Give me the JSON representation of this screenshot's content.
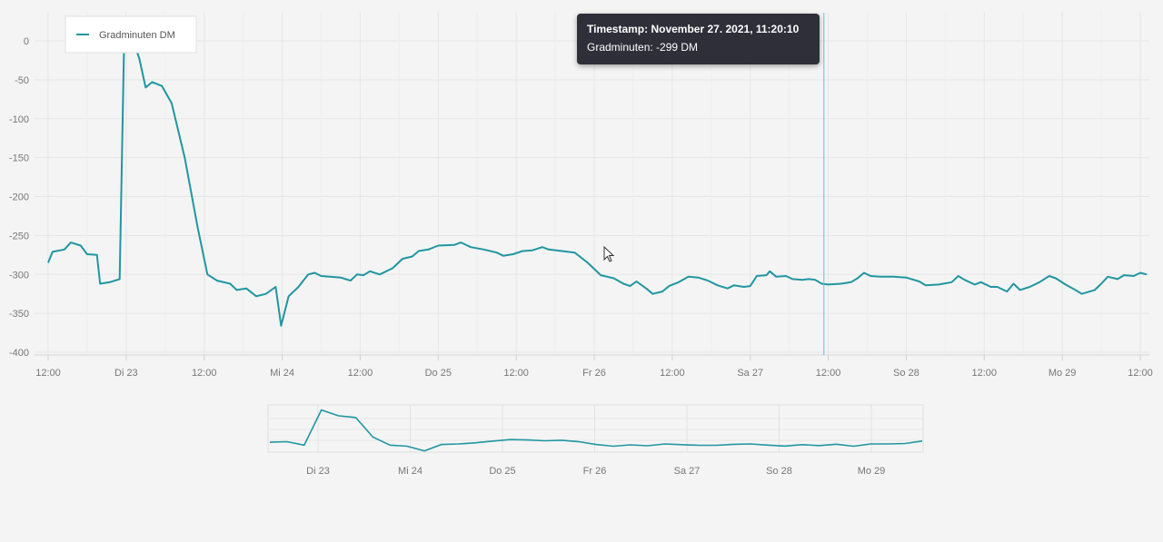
{
  "colors": {
    "series": "#2196a0",
    "crosshair": "#5cc3d2",
    "grid": "#e6e6e6",
    "background": "#f4f4f4",
    "tooltip_bg": "#2f2f3a"
  },
  "legend": {
    "label": "Gradminuten DM",
    "position": "top-left"
  },
  "tooltip": {
    "title": "Timestamp: November 27. 2021, 11:20:10",
    "value_line": "Gradminuten: -299 DM"
  },
  "cursor_icon": "mouse-pointer-icon",
  "chart_data": [
    {
      "type": "line",
      "title": "",
      "xlabel": "",
      "ylabel": "",
      "grid": true,
      "ylim": [
        -400,
        0
      ],
      "xlim": [
        "2021-11-22 12:00",
        "2021-11-29 12:00"
      ],
      "y_ticks": [
        "0",
        "-50",
        "-100",
        "-150",
        "-200",
        "-250",
        "-300",
        "-350",
        "-400"
      ],
      "x_ticks": [
        "12:00",
        "Di 23",
        "12:00",
        "Mi 24",
        "12:00",
        "Do 25",
        "12:00",
        "Fr 26",
        "12:00",
        "Sa 27",
        "12:00",
        "So 28",
        "12:00",
        "Mo 29",
        "12:00"
      ],
      "crosshair_x": "2021-11-27 11:20",
      "series": [
        {
          "name": "Gradminuten DM",
          "points": [
            [
              "2021-11-22 12:00",
              -285
            ],
            [
              "2021-11-22 12:40",
              -271
            ],
            [
              "2021-11-22 14:30",
              -268
            ],
            [
              "2021-11-22 15:30",
              -259
            ],
            [
              "2021-11-22 17:00",
              -263
            ],
            [
              "2021-11-22 18:00",
              -274
            ],
            [
              "2021-11-22 19:30",
              -275
            ],
            [
              "2021-11-22 20:00",
              -312
            ],
            [
              "2021-11-22 21:30",
              -310
            ],
            [
              "2021-11-22 23:00",
              -306
            ],
            [
              "2021-11-22 23:40",
              -8
            ],
            [
              "2021-11-23 00:30",
              -10
            ],
            [
              "2021-11-23 01:10",
              -3
            ],
            [
              "2021-11-23 02:00",
              -22
            ],
            [
              "2021-11-23 03:00",
              -60
            ],
            [
              "2021-11-23 04:00",
              -53
            ],
            [
              "2021-11-23 05:30",
              -58
            ],
            [
              "2021-11-23 07:00",
              -80
            ],
            [
              "2021-11-23 09:00",
              -150
            ],
            [
              "2021-11-23 11:00",
              -240
            ],
            [
              "2021-11-23 12:30",
              -300
            ],
            [
              "2021-11-23 14:00",
              -308
            ],
            [
              "2021-11-23 16:00",
              -312
            ],
            [
              "2021-11-23 17:00",
              -320
            ],
            [
              "2021-11-23 18:30",
              -318
            ],
            [
              "2021-11-23 20:00",
              -328
            ],
            [
              "2021-11-23 21:30",
              -325
            ],
            [
              "2021-11-23 23:00",
              -316
            ],
            [
              "2021-11-23 23:50",
              -366
            ],
            [
              "2021-11-24 01:00",
              -328
            ],
            [
              "2021-11-24 02:30",
              -316
            ],
            [
              "2021-11-24 04:00",
              -300
            ],
            [
              "2021-11-24 05:00",
              -298
            ],
            [
              "2021-11-24 06:00",
              -302
            ],
            [
              "2021-11-24 09:00",
              -304
            ],
            [
              "2021-11-24 10:30",
              -308
            ],
            [
              "2021-11-24 11:30",
              -300
            ],
            [
              "2021-11-24 12:30",
              -301
            ],
            [
              "2021-11-24 13:30",
              -296
            ],
            [
              "2021-11-24 15:00",
              -300
            ],
            [
              "2021-11-24 17:00",
              -292
            ],
            [
              "2021-11-24 18:30",
              -280
            ],
            [
              "2021-11-24 20:00",
              -277
            ],
            [
              "2021-11-24 21:00",
              -270
            ],
            [
              "2021-11-24 22:30",
              -268
            ],
            [
              "2021-11-25 00:00",
              -263
            ],
            [
              "2021-11-25 02:30",
              -262
            ],
            [
              "2021-11-25 03:30",
              -259
            ],
            [
              "2021-11-25 05:00",
              -265
            ],
            [
              "2021-11-25 07:00",
              -268
            ],
            [
              "2021-11-25 09:00",
              -272
            ],
            [
              "2021-11-25 10:00",
              -276
            ],
            [
              "2021-11-25 11:30",
              -274
            ],
            [
              "2021-11-25 13:00",
              -270
            ],
            [
              "2021-11-25 14:30",
              -269
            ],
            [
              "2021-11-25 16:00",
              -265
            ],
            [
              "2021-11-25 17:00",
              -268
            ],
            [
              "2021-11-25 19:00",
              -270
            ],
            [
              "2021-11-25 21:00",
              -272
            ],
            [
              "2021-11-25 23:00",
              -285
            ],
            [
              "2021-11-26 01:00",
              -301
            ],
            [
              "2021-11-26 03:00",
              -305
            ],
            [
              "2021-11-26 04:30",
              -312
            ],
            [
              "2021-11-26 05:30",
              -315
            ],
            [
              "2021-11-26 06:30",
              -309
            ],
            [
              "2021-11-26 08:00",
              -318
            ],
            [
              "2021-11-26 09:00",
              -325
            ],
            [
              "2021-11-26 10:30",
              -322
            ],
            [
              "2021-11-26 11:30",
              -315
            ],
            [
              "2021-11-26 13:00",
              -310
            ],
            [
              "2021-11-26 14:30",
              -303
            ],
            [
              "2021-11-26 16:00",
              -304
            ],
            [
              "2021-11-26 17:30",
              -308
            ],
            [
              "2021-11-26 19:00",
              -314
            ],
            [
              "2021-11-26 20:30",
              -318
            ],
            [
              "2021-11-26 21:30",
              -314
            ],
            [
              "2021-11-26 23:00",
              -316
            ],
            [
              "2021-11-27 00:00",
              -315
            ],
            [
              "2021-11-27 01:00",
              -302
            ],
            [
              "2021-11-27 02:30",
              -301
            ],
            [
              "2021-11-27 03:00",
              -296
            ],
            [
              "2021-11-27 04:00",
              -303
            ],
            [
              "2021-11-27 05:30",
              -302
            ],
            [
              "2021-11-27 06:30",
              -306
            ],
            [
              "2021-11-27 08:00",
              -307
            ],
            [
              "2021-11-27 09:00",
              -306
            ],
            [
              "2021-11-27 10:00",
              -307
            ],
            [
              "2021-11-27 11:00",
              -312
            ],
            [
              "2021-11-27 12:00",
              -313
            ],
            [
              "2021-11-27 14:00",
              -312
            ],
            [
              "2021-11-27 15:30",
              -310
            ],
            [
              "2021-11-27 16:30",
              -305
            ],
            [
              "2021-11-27 17:30",
              -298
            ],
            [
              "2021-11-27 18:30",
              -302
            ],
            [
              "2021-11-27 20:00",
              -303
            ],
            [
              "2021-11-27 22:00",
              -303
            ],
            [
              "2021-11-28 00:00",
              -304
            ],
            [
              "2021-11-28 02:00",
              -309
            ],
            [
              "2021-11-28 03:00",
              -314
            ],
            [
              "2021-11-28 05:00",
              -313
            ],
            [
              "2021-11-28 07:00",
              -310
            ],
            [
              "2021-11-28 08:00",
              -302
            ],
            [
              "2021-11-28 09:00",
              -307
            ],
            [
              "2021-11-28 10:30",
              -313
            ],
            [
              "2021-11-28 11:30",
              -310
            ],
            [
              "2021-11-28 13:00",
              -316
            ],
            [
              "2021-11-28 14:00",
              -316
            ],
            [
              "2021-11-28 15:30",
              -322
            ],
            [
              "2021-11-28 16:30",
              -312
            ],
            [
              "2021-11-28 17:30",
              -320
            ],
            [
              "2021-11-28 19:00",
              -316
            ],
            [
              "2021-11-28 20:30",
              -310
            ],
            [
              "2021-11-28 22:00",
              -302
            ],
            [
              "2021-11-28 23:00",
              -305
            ],
            [
              "2021-11-29 00:30",
              -313
            ],
            [
              "2021-11-29 02:00",
              -320
            ],
            [
              "2021-11-29 03:00",
              -325
            ],
            [
              "2021-11-29 05:00",
              -320
            ],
            [
              "2021-11-29 06:00",
              -312
            ],
            [
              "2021-11-29 07:00",
              -303
            ],
            [
              "2021-11-29 08:30",
              -306
            ],
            [
              "2021-11-29 09:30",
              -301
            ],
            [
              "2021-11-29 11:00",
              -302
            ],
            [
              "2021-11-29 12:00",
              -298
            ],
            [
              "2021-11-29 13:00",
              -300
            ]
          ]
        }
      ]
    },
    {
      "type": "line",
      "title": "",
      "x_ticks": [
        "Di 23",
        "Mi 24",
        "Do 25",
        "Fr 26",
        "Sa 27",
        "So 28",
        "Mo 29"
      ],
      "series": [
        {
          "values": [
            -285,
            -280,
            -310,
            -5,
            -55,
            -70,
            -240,
            -310,
            -320,
            -360,
            -305,
            -300,
            -290,
            -275,
            -262,
            -265,
            -272,
            -268,
            -280,
            -305,
            -320,
            -308,
            -316,
            -300,
            -306,
            -312,
            -312,
            -303,
            -300,
            -310,
            -318,
            -306,
            -314,
            -302,
            -320,
            -300,
            -300,
            -296,
            -275
          ]
        }
      ]
    }
  ]
}
